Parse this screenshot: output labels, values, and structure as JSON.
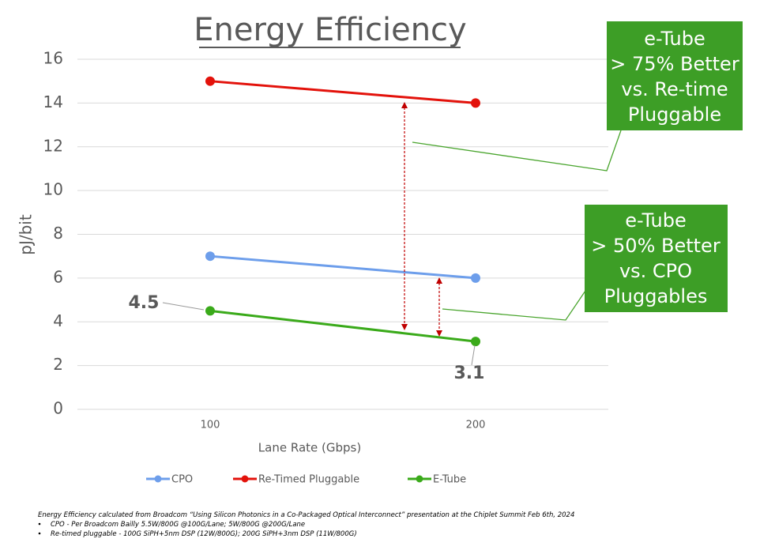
{
  "chart_data": {
    "type": "line",
    "title": "Energy Efficiency",
    "x_label": "Lane Rate (Gbps)",
    "y_label": "pJ/bit",
    "categories": [
      "100",
      "200"
    ],
    "series": [
      {
        "name": "CPO",
        "color": "#6d9eeb",
        "values": [
          7,
          6
        ]
      },
      {
        "name": "Re-Timed Pluggable",
        "color": "#e3120b",
        "values": [
          15,
          14
        ]
      },
      {
        "name": "E-Tube",
        "color": "#3aaa1a",
        "values": [
          4.5,
          3.1
        ]
      }
    ],
    "ylim": [
      0,
      16
    ],
    "yticks": [
      0,
      2,
      4,
      6,
      8,
      10,
      12,
      14,
      16
    ],
    "grid": true,
    "legend": "bottom",
    "annotations": [
      {
        "lines": [
          "e-Tube",
          "> 75% Better",
          "vs. Re-time",
          "Pluggable"
        ]
      },
      {
        "lines": [
          "e-Tube",
          "> 50% Better",
          "vs. CPO",
          "Pluggables"
        ]
      }
    ]
  },
  "footnotes": [
    "Energy Efficiency calculated from Broadcom “Using Silicon Photonics in a Co-Packaged Optical Interconnect” presentation at the Chiplet Summit Feb 6th, 2024",
    "CPO - Per Broadcom Bailly 5.5W/800G @100G/Lane; 5W/800G @200G/Lane",
    "Re-timed pluggable - 100G SiPH+5nm DSP (12W/800G); 200G SiPH+3nm DSP (11W/800G)"
  ]
}
